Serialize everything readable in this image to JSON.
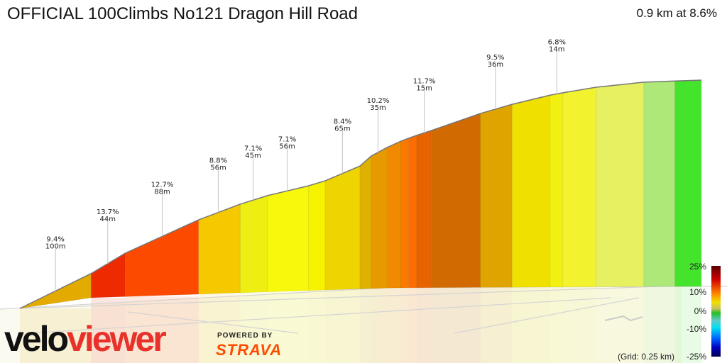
{
  "header": {
    "title": "OFFICIAL 100Climbs No121 Dragon Hill Road",
    "summary": "0.9 km at 8.6%"
  },
  "branding": {
    "logo_part1": "velo",
    "logo_part2": "viewer",
    "powered_by": "POWERED BY",
    "strava": "STRAVA",
    "logo_color": "#e8312a",
    "strava_color": "#fc4c02"
  },
  "chart_data": {
    "type": "area",
    "title": "OFFICIAL 100Climbs No121 Dragon Hill Road",
    "total_distance_km": 0.9,
    "average_gradient_pct": 8.6,
    "profile_points_km_elev_m": [
      [
        0,
        0
      ],
      [
        0.094,
        11.8
      ],
      [
        0.139,
        18.7
      ],
      [
        0.236,
        30.0
      ],
      [
        0.291,
        35.3
      ],
      [
        0.327,
        38.2
      ],
      [
        0.381,
        41.5
      ],
      [
        0.403,
        43.2
      ],
      [
        0.449,
        48.2
      ],
      [
        0.464,
        51.6
      ],
      [
        0.485,
        54.5
      ],
      [
        0.503,
        56.6
      ],
      [
        0.513,
        57.6
      ],
      [
        0.524,
        58.6
      ],
      [
        0.543,
        60.2
      ],
      [
        0.608,
        66.0
      ],
      [
        0.65,
        69.1
      ],
      [
        0.7,
        72.2
      ],
      [
        0.717,
        73.0
      ],
      [
        0.761,
        74.9
      ],
      [
        0.824,
        76.6
      ],
      [
        0.865,
        77.0
      ],
      [
        0.9,
        77.3
      ]
    ],
    "segment_colors": [
      "#e3aa00",
      "#ee2a00",
      "#fc4a00",
      "#f6c800",
      "#efee12",
      "#f8f80c",
      "#f6f200",
      "#eed400",
      "#deb000",
      "#e69a00",
      "#f08a00",
      "#fa7a00",
      "#fb6d00",
      "#e66300",
      "#d16a00",
      "#e0a400",
      "#f0e000",
      "#f2f010",
      "#f2f22e",
      "#e6f060",
      "#ade878",
      "#44e42c"
    ],
    "annotations": [
      {
        "km": 0.047,
        "gradient": "9.4%",
        "length": "100m"
      },
      {
        "km": 0.116,
        "gradient": "13.7%",
        "length": "44m"
      },
      {
        "km": 0.188,
        "gradient": "12.7%",
        "length": "88m"
      },
      {
        "km": 0.262,
        "gradient": "8.8%",
        "length": "56m"
      },
      {
        "km": 0.308,
        "gradient": "7.1%",
        "length": "45m"
      },
      {
        "km": 0.353,
        "gradient": "7.1%",
        "length": "56m"
      },
      {
        "km": 0.426,
        "gradient": "8.4%",
        "length": "65m"
      },
      {
        "km": 0.473,
        "gradient": "10.2%",
        "length": "35m"
      },
      {
        "km": 0.534,
        "gradient": "11.7%",
        "length": "15m"
      },
      {
        "km": 0.628,
        "gradient": "9.5%",
        "length": "36m"
      },
      {
        "km": 0.709,
        "gradient": "6.8%",
        "length": "14m"
      }
    ],
    "legend": {
      "ticks": [
        "25%",
        "10%",
        "0%",
        "-10%",
        "-25%"
      ],
      "grid_note": "(Grid: 0.25 km)",
      "placement": "bottom-right"
    }
  }
}
